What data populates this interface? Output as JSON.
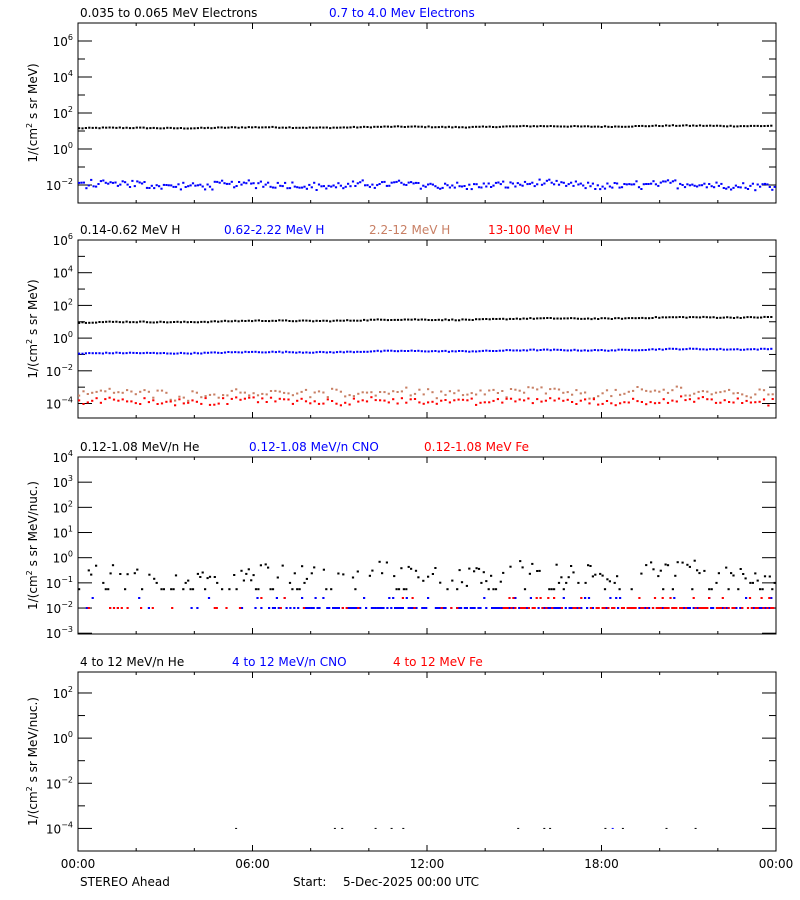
{
  "footer": {
    "spacecraft": "STEREO Ahead",
    "start_label": "Start:",
    "start_value": "5-Dec-2025 00:00 UTC"
  },
  "colors": {
    "black": "#000000",
    "blue": "#0000ff",
    "tan": "#c87f64",
    "red": "#ff0000"
  },
  "chart_data": [
    {
      "type": "scatter",
      "title": "",
      "xlabel": "",
      "ylabel": "1/(cm^2 s sr MeV)",
      "yscale": "log",
      "ylim": [
        0.001,
        10000000
      ],
      "ytick_exponents": [
        -2,
        0,
        2,
        4,
        6
      ],
      "yminor_exponents": [
        -1,
        1,
        3,
        5
      ],
      "x_tick_labels": [
        "00:00",
        "06:00",
        "12:00",
        "18:00",
        "00:00"
      ],
      "xlim_hours": [
        0,
        24
      ],
      "grid": false,
      "legend": [
        {
          "label": "0.035 to 0.065 MeV Electrons",
          "color": "#000000"
        },
        {
          "label": "0.7 to 4.0 Mev Electrons",
          "color": "#0000ff"
        }
      ],
      "series": [
        {
          "name": "0.035 to 0.065 MeV Electrons",
          "color": "#000000",
          "start_log": 1.15,
          "end_log": 1.3,
          "noise": 0.05,
          "spread": 0,
          "step_min": 7
        },
        {
          "name": "0.7 to 4.0 Mev Electrons",
          "color": "#0000ff",
          "start_log": -2.0,
          "end_log": -2.0,
          "noise": 0.18,
          "spread": 0.35,
          "step_min": 5
        }
      ]
    },
    {
      "type": "scatter",
      "ylabel": "1/(cm^2 s sr MeV)",
      "yscale": "log",
      "ylim": [
        1.3e-05,
        1000000
      ],
      "ytick_exponents": [
        -4,
        -2,
        0,
        2,
        4,
        6
      ],
      "yminor_exponents": [
        -3,
        -1,
        1,
        3,
        5
      ],
      "xlim_hours": [
        0,
        24
      ],
      "grid": false,
      "legend": [
        {
          "label": "0.14-0.62 MeV H",
          "color": "#000000"
        },
        {
          "label": "0.62-2.22 MeV H",
          "color": "#0000ff"
        },
        {
          "label": "2.2-12 MeV H",
          "color": "#c87f64"
        },
        {
          "label": "13-100 MeV H",
          "color": "#ff0000"
        }
      ],
      "series": [
        {
          "name": "0.14-0.62 MeV H",
          "color": "#000000",
          "start_log": 0.95,
          "end_log": 1.3,
          "noise": 0.06,
          "spread": 0,
          "step_min": 7
        },
        {
          "name": "0.62-2.22 MeV H",
          "color": "#0000ff",
          "start_log": -0.95,
          "end_log": -0.65,
          "noise": 0.06,
          "spread": 0,
          "step_min": 7
        },
        {
          "name": "2.2-12 MeV H",
          "color": "#c87f64",
          "start_log": -3.4,
          "end_log": -3.3,
          "noise": 0.25,
          "spread": 0.5,
          "step_min": 9
        },
        {
          "name": "13-100 MeV H",
          "color": "#ff0000",
          "start_log": -3.85,
          "end_log": -3.85,
          "noise": 0.2,
          "spread": 0.35,
          "step_min": 9
        }
      ]
    },
    {
      "type": "scatter",
      "ylabel": "1/(cm^2 s sr MeV/nuc.)",
      "yscale": "log",
      "ylim": [
        0.00093,
        10000
      ],
      "ytick_exponents": [
        -3,
        -2,
        -1,
        0,
        1,
        2,
        3,
        4
      ],
      "yminor_exponents": [],
      "xlim_hours": [
        0,
        24
      ],
      "grid": false,
      "legend": [
        {
          "label": "0.12-1.08 MeV/n He",
          "color": "#000000"
        },
        {
          "label": "0.12-1.08 MeV/n CNO",
          "color": "#0000ff"
        },
        {
          "label": "0.12-1.08 MeV Fe",
          "color": "#ff0000"
        }
      ],
      "series": [
        {
          "name": "0.12-1.08 MeV/n He",
          "color": "#000000",
          "start_log": -0.7,
          "end_log": -0.55,
          "noise": 0.3,
          "spread": 0.6,
          "step_min": 5,
          "quantized": true
        },
        {
          "name": "0.12-1.08 MeV/n CNO",
          "color": "#0000ff",
          "start_log": -2.0,
          "end_log": -2.0,
          "noise": 0.0,
          "spread": 0.3,
          "step_min": 4,
          "quantized": true,
          "sparse_start": 0.25
        },
        {
          "name": "0.12-1.08 MeV Fe",
          "color": "#ff0000",
          "start_log": -2.0,
          "end_log": -2.0,
          "noise": 0.0,
          "spread": 0.3,
          "step_min": 4,
          "quantized": true,
          "sparse_start": 0.6
        }
      ]
    },
    {
      "type": "scatter",
      "ylabel": "1/(cm^2 s sr MeV/nuc.)",
      "yscale": "log",
      "ylim": [
        1e-05,
        850
      ],
      "ytick_exponents": [
        -4,
        -2,
        0,
        2
      ],
      "yminor_exponents": [
        -3,
        -1,
        1
      ],
      "xlim_hours": [
        0,
        24
      ],
      "grid": false,
      "legend": [
        {
          "label": "4 to 12 MeV/n He",
          "color": "#000000"
        },
        {
          "label": "4 to 12 MeV/n CNO",
          "color": "#0000ff"
        },
        {
          "label": "4 to 12 MeV Fe",
          "color": "#ff0000"
        }
      ],
      "points": [
        {
          "hour": 5.4,
          "value": 0.0001,
          "color": "#000000"
        },
        {
          "hour": 8.8,
          "value": 0.0001,
          "color": "#000000"
        },
        {
          "hour": 9.05,
          "value": 0.0001,
          "color": "#000000"
        },
        {
          "hour": 10.2,
          "value": 0.0001,
          "color": "#000000"
        },
        {
          "hour": 10.75,
          "value": 0.0001,
          "color": "#000000"
        },
        {
          "hour": 11.15,
          "value": 0.0001,
          "color": "#000000"
        },
        {
          "hour": 15.1,
          "value": 0.0001,
          "color": "#000000"
        },
        {
          "hour": 16.0,
          "value": 0.0001,
          "color": "#000000"
        },
        {
          "hour": 16.2,
          "value": 0.0001,
          "color": "#000000"
        },
        {
          "hour": 18.1,
          "value": 0.0001,
          "color": "#000000"
        },
        {
          "hour": 18.35,
          "value": 0.0001,
          "color": "#0000ff"
        },
        {
          "hour": 18.7,
          "value": 0.0001,
          "color": "#000000"
        },
        {
          "hour": 20.2,
          "value": 0.0001,
          "color": "#000000"
        },
        {
          "hour": 21.2,
          "value": 0.0001,
          "color": "#000000"
        }
      ]
    }
  ]
}
